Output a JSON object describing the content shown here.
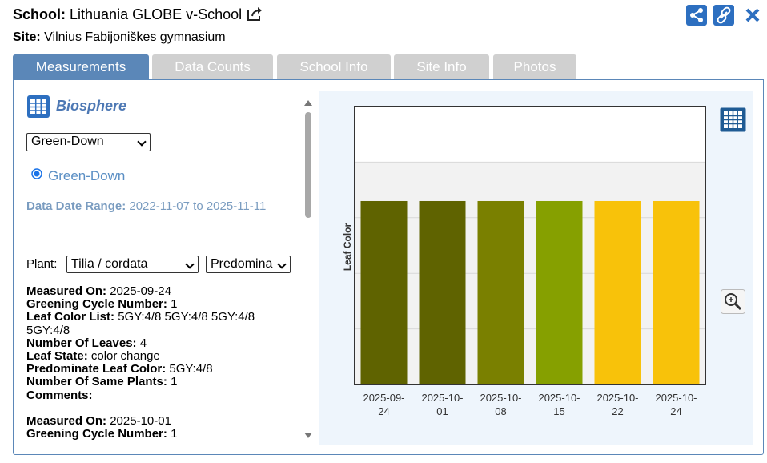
{
  "header": {
    "school_label": "School:",
    "school_name": "Lithuania GLOBE v-School",
    "site_label": "Site:",
    "site_name": "Vilnius Fabijoniškes gymnasium"
  },
  "tabs": [
    "Measurements",
    "Data Counts",
    "School Info",
    "Site Info",
    "Photos"
  ],
  "active_tab": 0,
  "panel": {
    "title": "Biosphere",
    "protocol_select": "Green-Down",
    "radio": "Green-Down",
    "date_range_label": "Data Date Range:",
    "date_range": "2022-11-07 to 2025-11-11",
    "plant_label": "Plant:",
    "plant_select": "Tilia / cordata",
    "color_select": "Predomina"
  },
  "records": [
    {
      "fields": [
        {
          "label": "Measured On:",
          "value": "2025-09-24"
        },
        {
          "label": "Greening Cycle Number:",
          "value": "1"
        },
        {
          "label": "Leaf Color List:",
          "value": "5GY:4/8 5GY:4/8 5GY:4/8 5GY:4/8"
        },
        {
          "label": "Number Of Leaves:",
          "value": "4"
        },
        {
          "label": "Leaf State:",
          "value": "color change"
        },
        {
          "label": "Predominate Leaf Color:",
          "value": "5GY:4/8"
        },
        {
          "label": "Number Of Same Plants:",
          "value": "1"
        },
        {
          "label": "Comments:"
        }
      ]
    },
    {
      "fields": [
        {
          "label": "Measured On:",
          "value": "2025-10-01"
        },
        {
          "label": "Greening Cycle Number:",
          "value": "1"
        }
      ]
    }
  ],
  "chart_data": {
    "type": "bar",
    "y_label": "Leaf Color",
    "categories": [
      "2025-09-24",
      "2025-10-01",
      "2025-10-08",
      "2025-10-15",
      "2025-10-22",
      "2025-10-24"
    ],
    "values": [
      3.3,
      3.3,
      3.3,
      3.3,
      3.3,
      3.3
    ],
    "colors": [
      "#5f6300",
      "#5f6300",
      "#7a8000",
      "#86a000",
      "#f8c20a",
      "#f8c20a"
    ],
    "ylim": [
      0,
      5
    ],
    "yticks": [
      1,
      2,
      3,
      4
    ],
    "grid": true
  }
}
